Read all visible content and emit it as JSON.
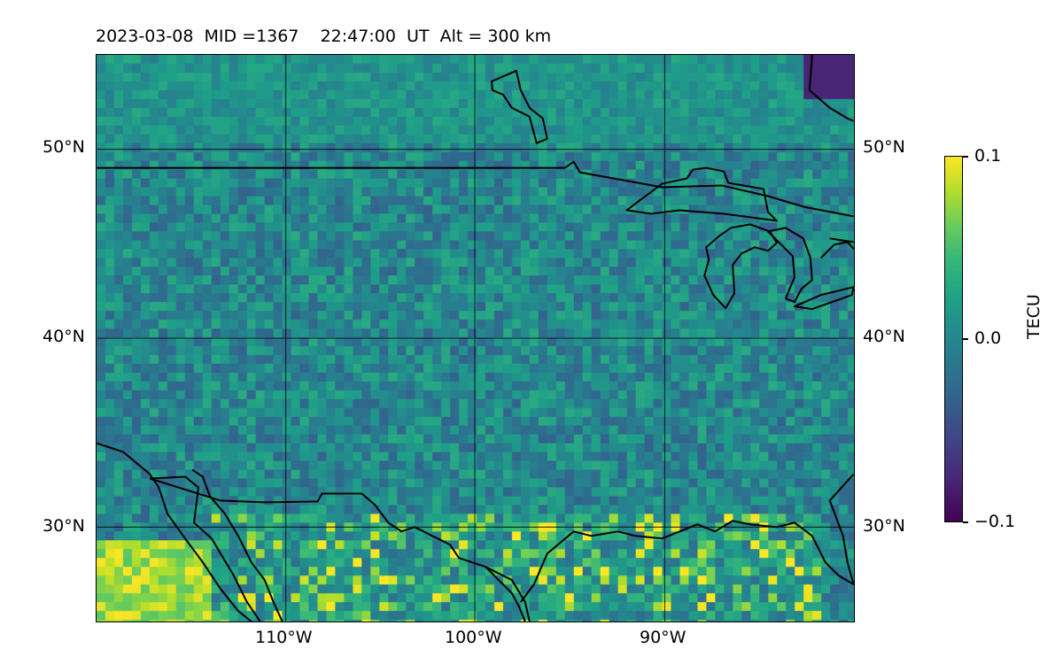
{
  "title": "2023-03-08  MID =1367    22:47:00  UT  Alt = 300 km",
  "map": {
    "type": "heatmap",
    "lon_range": [
      -120,
      -80
    ],
    "lat_range": [
      25,
      55
    ],
    "grid_lines": true,
    "lat_ticks_left": [
      "50°N",
      "40°N",
      "30°N"
    ],
    "lat_ticks_right": [
      "50°N",
      "40°N",
      "30°N"
    ],
    "lon_ticks": [
      "110°W",
      "100°W",
      "90°W"
    ],
    "colormap": "viridis"
  },
  "colorbar": {
    "label": "TECU",
    "ticks": [
      "0.1",
      "0.0",
      "−0.1"
    ],
    "range": [
      -0.1,
      0.1
    ]
  },
  "chart_data": {
    "type": "heatmap",
    "title": "2023-03-08  MID =1367    22:47:00  UT  Alt = 300 km",
    "xlabel": "",
    "ylabel": "",
    "x_ticks": [
      "110°W",
      "100°W",
      "90°W"
    ],
    "y_ticks": [
      "30°N",
      "40°N",
      "50°N"
    ],
    "xlim": [
      -120,
      -80
    ],
    "ylim": [
      25,
      55
    ],
    "colorbar_label": "TECU",
    "colorbar_range": [
      -0.1,
      0.1
    ],
    "grid": true
  }
}
